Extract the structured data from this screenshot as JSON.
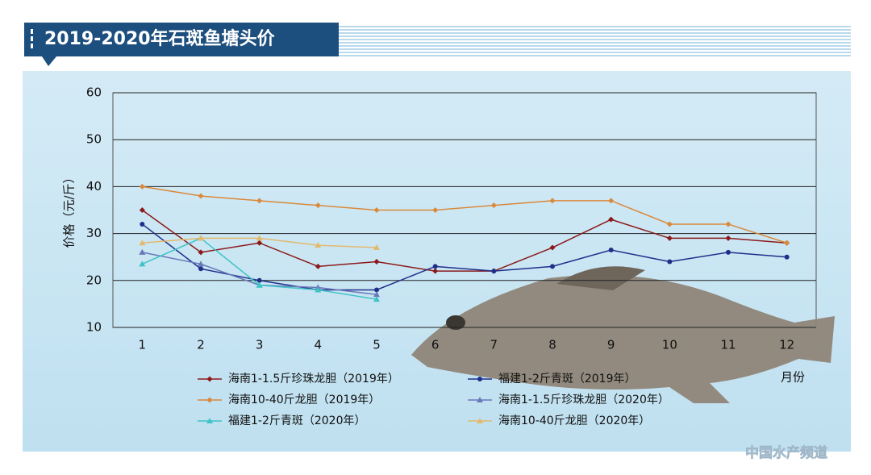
{
  "chart_data": {
    "type": "line",
    "title": "2019-2020年石斑鱼塘头价",
    "y_label": "价格（元/斤）",
    "x_label": "月份",
    "watermark": "中国水产频道",
    "categories": [
      1,
      2,
      3,
      4,
      5,
      6,
      7,
      8,
      9,
      10,
      11,
      12
    ],
    "ylim": [
      10,
      60
    ],
    "yticks": [
      10,
      20,
      30,
      40,
      50,
      60
    ],
    "grid": true,
    "series": [
      {
        "name": "海南1-1.5斤珍珠龙胆（2019年）",
        "color": "#8b1a1a",
        "marker": "diamond",
        "values": [
          35,
          26,
          28,
          23,
          24,
          22,
          22,
          27,
          33,
          29,
          29,
          28
        ]
      },
      {
        "name": "福建1-2斤青斑（2019年）",
        "color": "#1f2f8a",
        "marker": "circle",
        "values": [
          32,
          22.5,
          20,
          18,
          18,
          23,
          22,
          23,
          26.5,
          24,
          26,
          25
        ]
      },
      {
        "name": "海南10-40斤龙胆（2019年）",
        "color": "#d9893a",
        "marker": "diamond",
        "values": [
          40,
          38,
          37,
          36,
          35,
          35,
          36,
          37,
          37,
          32,
          32,
          28
        ]
      },
      {
        "name": "海南1-1.5斤珍珠龙胆（2020年）",
        "color": "#6b78b8",
        "marker": "triangle",
        "values": [
          26,
          23.5,
          19,
          18.5,
          17,
          null,
          null,
          null,
          null,
          null,
          null,
          null
        ]
      },
      {
        "name": "福建1-2斤青斑（2020年）",
        "color": "#3ec3c6",
        "marker": "triangle",
        "values": [
          23.5,
          29,
          19,
          18,
          16,
          null,
          null,
          null,
          null,
          null,
          null,
          null
        ]
      },
      {
        "name": "海南10-40斤龙胆（2020年）",
        "color": "#e3b96e",
        "marker": "triangle",
        "values": [
          28,
          29,
          29,
          27.5,
          27,
          null,
          null,
          null,
          null,
          null,
          null,
          null
        ]
      }
    ]
  }
}
